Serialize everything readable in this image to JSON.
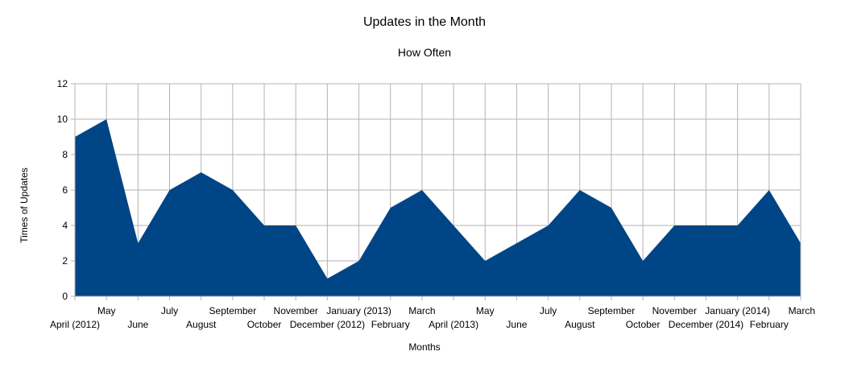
{
  "chart_data": {
    "type": "area",
    "title": "Updates in the Month",
    "subtitle": "How Often",
    "xlabel": "Months",
    "ylabel": "Times of Updates",
    "categories": [
      "April (2012)",
      "May",
      "June",
      "July",
      "August",
      "September",
      "October",
      "November",
      "December (2012)",
      "January (2013)",
      "February",
      "March",
      "April (2013)",
      "May",
      "June",
      "July",
      "August",
      "September",
      "October",
      "November",
      "December (2014)",
      "January (2014)",
      "February",
      "March"
    ],
    "values": [
      9,
      10,
      3,
      6,
      7,
      6,
      4,
      4,
      1,
      2,
      5,
      6,
      4,
      2,
      3,
      4,
      6,
      5,
      2,
      4,
      4,
      4,
      6,
      3
    ],
    "ylim": [
      0,
      12
    ],
    "yticks": [
      0,
      2,
      4,
      6,
      8,
      10,
      12
    ],
    "grid": true,
    "color": "#004586"
  }
}
